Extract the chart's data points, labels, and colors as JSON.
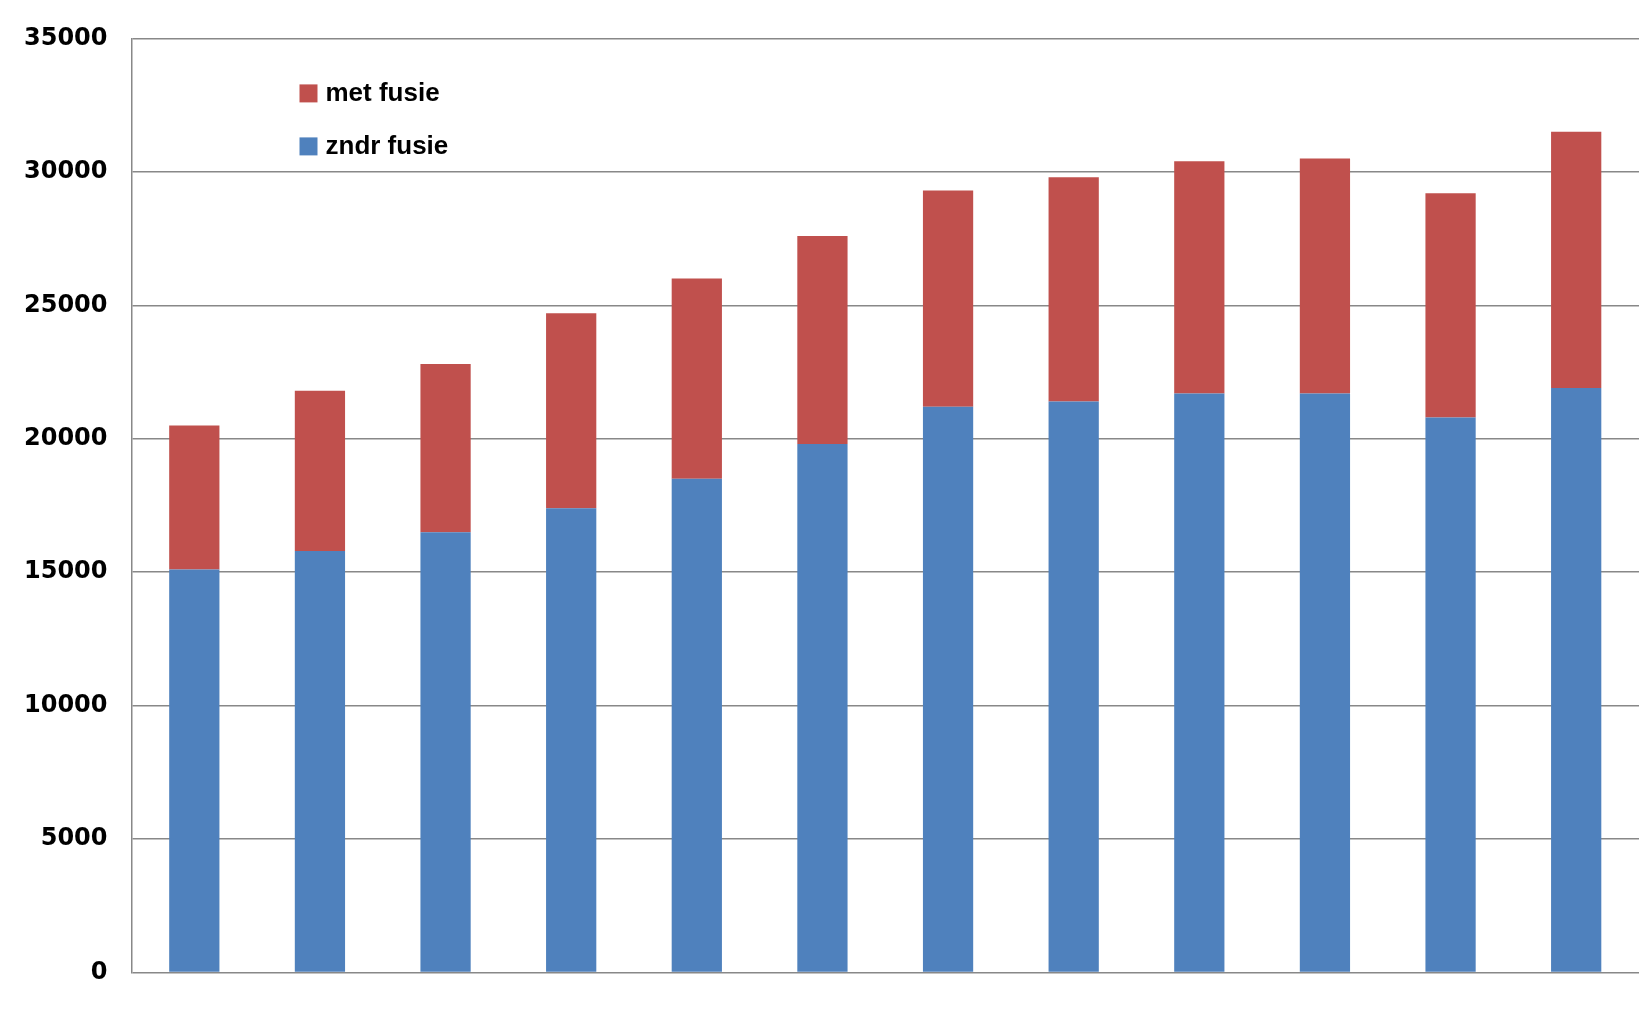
{
  "chart_data": {
    "type": "bar",
    "stacked": true,
    "categories": [
      null,
      null,
      null,
      null,
      null,
      null,
      null,
      null,
      null,
      null,
      null,
      null
    ],
    "series": [
      {
        "name": "zndr fusie",
        "color": "#4f81bd",
        "values": [
          15100,
          15800,
          16500,
          17400,
          18500,
          19800,
          21200,
          21400,
          21700,
          21700,
          20800,
          21900
        ]
      },
      {
        "name": "met fusie",
        "color": "#c0504d",
        "values": [
          5400,
          6000,
          6300,
          7300,
          7500,
          7800,
          8100,
          8400,
          8700,
          8800,
          8400,
          9600
        ]
      }
    ],
    "ylim": [
      0,
      35000
    ],
    "yticks": [
      0,
      5000,
      10000,
      15000,
      20000,
      25000,
      30000,
      35000
    ],
    "grid": "y",
    "legend": "top left"
  }
}
